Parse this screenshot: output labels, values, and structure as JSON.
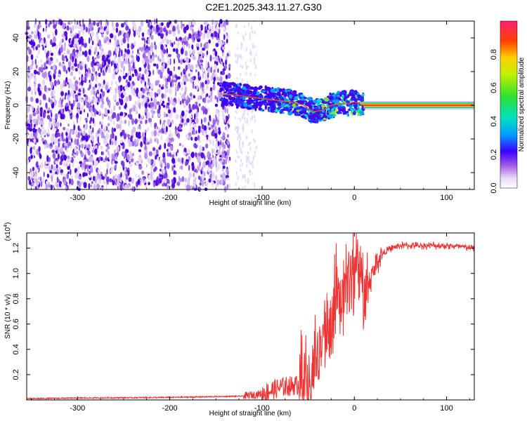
{
  "title": "C2E1.2025.343.11.27.G30",
  "chart_data": [
    {
      "type": "heatmap",
      "xlabel": "Height of straight line (km)",
      "ylabel": "Frequency (Hz)",
      "xlim": [
        -355,
        130
      ],
      "ylim": [
        -50,
        50
      ],
      "x_ticks": [
        -300,
        -200,
        -100,
        0,
        100
      ],
      "x_tick_labels": [
        "-300",
        "-200",
        "-100",
        "0",
        "100"
      ],
      "y_ticks": [
        -40,
        -20,
        0,
        20,
        40
      ],
      "y_tick_labels": [
        "-40",
        "-20",
        "0",
        "20",
        "40"
      ],
      "colorbar": {
        "label": "Normalized spectral amplitude",
        "range": [
          0,
          1
        ],
        "ticks": [
          0.0,
          0.2,
          0.4,
          0.6,
          0.8
        ],
        "tick_labels": [
          "0.0",
          "0.2",
          "0.4",
          "0.6",
          "0.8"
        ]
      },
      "noise_region_x": [
        -355,
        -135
      ],
      "ridge": {
        "x": [
          -145,
          -130,
          -115,
          -100,
          -85,
          -70,
          -55,
          -45,
          -35,
          -25,
          -15,
          -5,
          0,
          10,
          50,
          130
        ],
        "y": [
          7,
          6,
          5,
          4,
          3,
          2,
          0,
          -4,
          -3,
          0,
          1,
          1,
          2,
          0,
          0,
          0
        ],
        "amplitude": [
          0.2,
          0.3,
          0.35,
          0.35,
          0.4,
          0.45,
          0.5,
          0.6,
          0.65,
          0.75,
          0.8,
          0.85,
          0.9,
          0.95,
          1.0,
          1.0
        ]
      }
    },
    {
      "type": "line",
      "xlabel": "Height of straight line (km)",
      "ylabel": "SNR (10 * v/v)",
      "y_multiplier": "(x10",
      "y_multiplier_exp": "4",
      "y_multiplier_close": ")",
      "xlim": [
        -355,
        130
      ],
      "ylim": [
        0,
        1.32
      ],
      "x_ticks": [
        -300,
        -200,
        -100,
        0,
        100
      ],
      "x_tick_labels": [
        "-300",
        "-200",
        "-100",
        "0",
        "100"
      ],
      "y_ticks": [
        0.2,
        0.4,
        0.6,
        0.8,
        1.0,
        1.2
      ],
      "y_tick_labels": [
        "0.2",
        "0.4",
        "0.6",
        "0.8",
        "1.0",
        "1.2"
      ],
      "series": [
        {
          "color": "#ee3333",
          "x": [
            -355,
            -300,
            -200,
            -120,
            -100,
            -80,
            -60,
            -50,
            -45,
            -40,
            -35,
            -30,
            -25,
            -20,
            -15,
            -10,
            -5,
            0,
            5,
            10,
            15,
            20,
            25,
            30,
            35,
            40,
            50,
            60,
            80,
            100,
            130
          ],
          "y": [
            0.01,
            0.015,
            0.02,
            0.03,
            0.05,
            0.1,
            0.12,
            0.1,
            0.2,
            0.3,
            0.45,
            0.55,
            0.6,
            0.8,
            0.75,
            0.9,
            1.0,
            0.95,
            1.0,
            0.85,
            0.9,
            1.0,
            1.1,
            1.15,
            1.18,
            1.2,
            1.22,
            1.22,
            1.22,
            1.22,
            1.2
          ]
        }
      ]
    }
  ]
}
